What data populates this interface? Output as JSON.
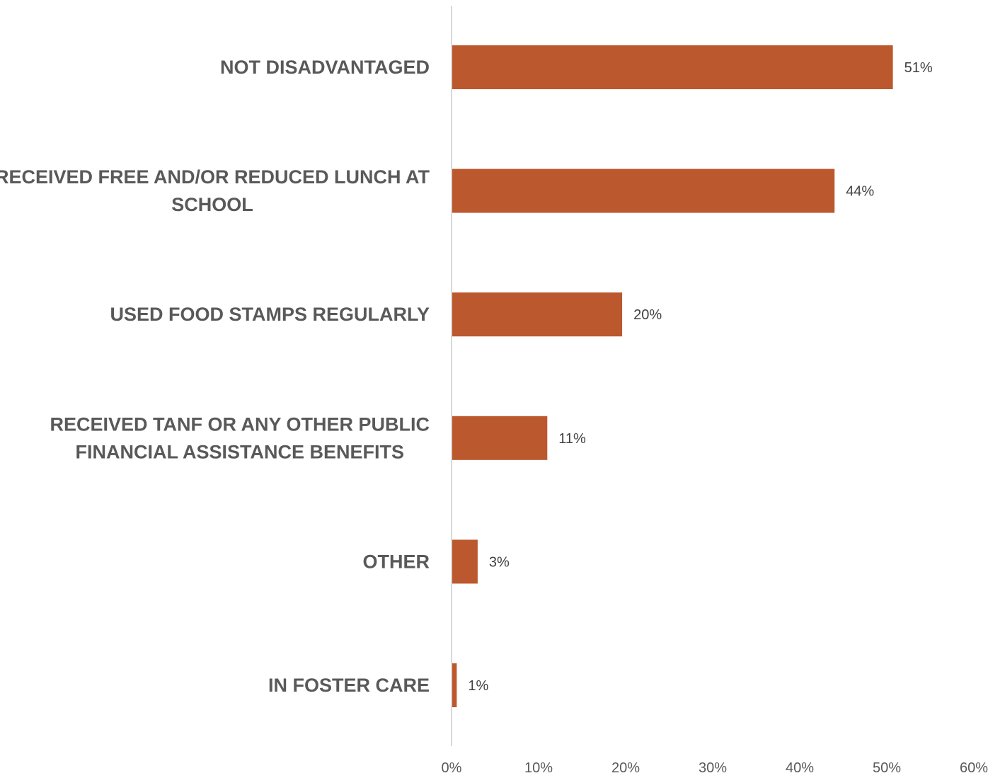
{
  "chart_data": {
    "type": "bar",
    "orientation": "horizontal",
    "categories": [
      "NOT DISADVANTAGED",
      "RECEIVED FREE AND/OR REDUCED LUNCH AT SCHOOL",
      "USED FOOD STAMPS REGULARLY",
      "RECEIVED TANF OR ANY OTHER PUBLIC FINANCIAL ASSISTANCE BENEFITS",
      "OTHER",
      "IN FOSTER CARE"
    ],
    "category_lines": [
      [
        "NOT DISADVANTAGED"
      ],
      [
        "RECEIVED FREE AND/OR REDUCED LUNCH AT",
        "SCHOOL"
      ],
      [
        "USED FOOD STAMPS REGULARLY"
      ],
      [
        "RECEIVED TANF OR ANY OTHER PUBLIC",
        "FINANCIAL ASSISTANCE BENEFITS"
      ],
      [
        "OTHER"
      ],
      [
        "IN FOSTER CARE"
      ]
    ],
    "values": [
      50.7,
      44.0,
      19.6,
      11.0,
      3.0,
      0.6
    ],
    "data_labels": [
      "51%",
      "44%",
      "20%",
      "11%",
      "3%",
      "1%"
    ],
    "xlim": [
      0,
      60
    ],
    "ticks": [
      0,
      10,
      20,
      30,
      40,
      50,
      60
    ],
    "tick_labels": [
      "0%",
      "10%",
      "20%",
      "30%",
      "40%",
      "50%",
      "60%"
    ],
    "title": "",
    "xlabel": "",
    "ylabel": "",
    "grid": false,
    "legend": "none",
    "colors": {
      "bar": "#BC582D",
      "axis": "#D9D9D9",
      "category_text": "#595959",
      "data_label_text": "#404040",
      "tick_text": "#595959"
    }
  }
}
